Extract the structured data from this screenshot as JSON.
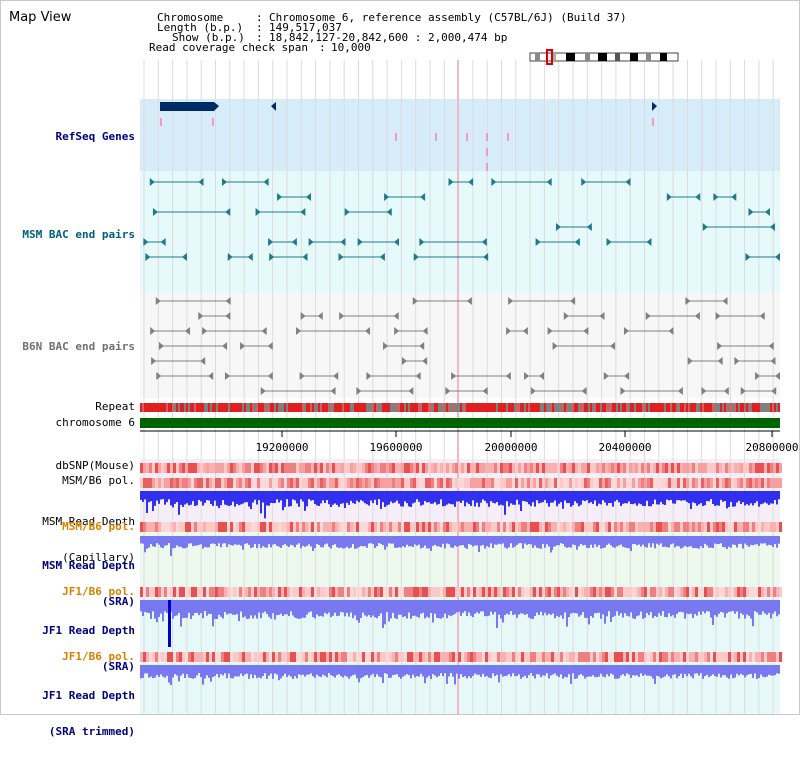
{
  "page": {
    "title": "Map View"
  },
  "header": {
    "chromosome_key": "Chromosome",
    "chromosome_value": "Chromosome 6, reference assembly (C57BL/6J) (Build 37)",
    "length_key": "Length (b.p.)",
    "length_value": "149,517,037",
    "show_key": "Show (b.p.)",
    "show_value": "18,842,127-20,842,600 : 2,000,474 bp",
    "coverage_key": "Read coverage check span",
    "coverage_value": "10,000"
  },
  "tracks": {
    "refseq": "RefSeq Genes",
    "msm_bac": "MSM BAC end pairs",
    "b6n_bac": "B6N BAC end pairs",
    "repeat": "Repeat",
    "chromosome": "chromosome 6",
    "dbsnp": "dbSNP(Mouse)",
    "msm_pol_1": "MSM/B6 pol.",
    "msm_depth_cap_1": "MSM Read Depth",
    "msm_depth_cap_2": "(Capillary)",
    "msm_pol_2": "MSM/B6 pol.",
    "msm_depth_sra_1": "MSM Read Depth",
    "msm_depth_sra_2": "(SRA)",
    "jf1_pol_1": "JF1/B6 pol.",
    "jf1_depth_sra_1": "JF1 Read Depth",
    "jf1_depth_sra_2": "(SRA)",
    "jf1_pol_2": "JF1/B6 pol.",
    "jf1_depth_trim_1": "JF1 Read Depth",
    "jf1_depth_trim_2": "(SRA trimmed)"
  },
  "axis": {
    "ticks": [
      "19200000",
      "19600000",
      "20000000",
      "20400000",
      "20800000"
    ]
  },
  "colors": {
    "refseq_bg": "#d6ecf8",
    "msm_bac_bg": "#e6f9fb",
    "b6n_bac_bg": "#f7f7f7",
    "chromosome_bar": "#006400",
    "label_navy": "#000080",
    "label_teal": "#006080",
    "label_orange": "#d88000",
    "depth_blue": "#3030ee",
    "depth_periwinkle": "#7878f0"
  }
}
